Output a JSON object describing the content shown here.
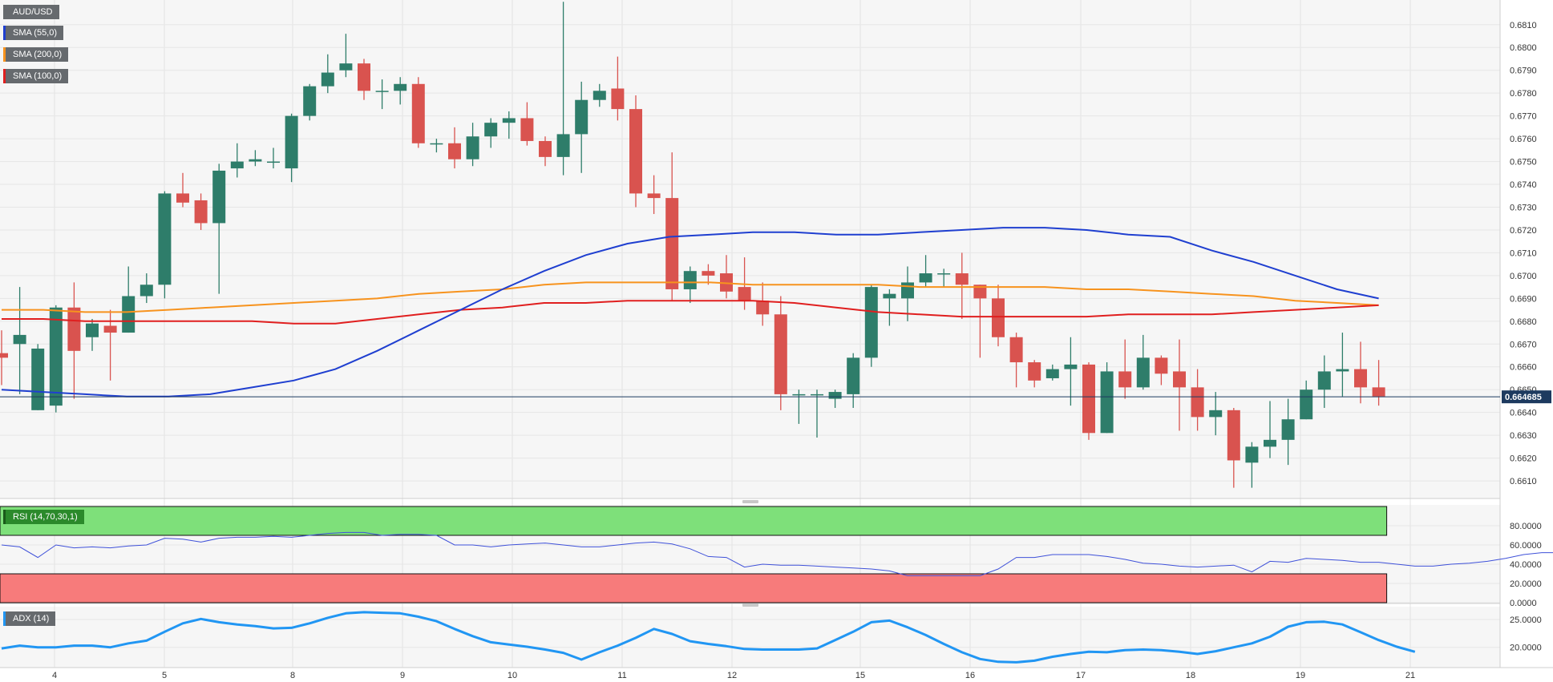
{
  "title": "AUD/USD",
  "colors": {
    "bull": "#2e7d6a",
    "bear": "#d9534f",
    "sma55": "#1f3fd0",
    "sma200": "#f7931e",
    "sma100": "#e01f1f",
    "rsi_line": "#3f51d9",
    "adx_line": "#2196f3",
    "overbought": "#7ee07a",
    "oversold": "#f77b7b",
    "price_tag": "#1d3a5f"
  },
  "legend": {
    "pair": "AUD/USD",
    "sma55": "SMA (55,0)",
    "sma200": "SMA (200,0)",
    "sma100": "SMA (100,0)",
    "rsi": "RSI (14,70,30,1)",
    "adx": "ADX (14)"
  },
  "chart_data": [
    {
      "type": "candlestick",
      "title": "AUD/USD",
      "x_tick_labels": [
        "4",
        "5",
        "8",
        "9",
        "10",
        "11",
        "12",
        "15",
        "16",
        "17",
        "18",
        "19",
        "21"
      ],
      "y_ticks": [
        "0.6610",
        "0.6620",
        "0.6630",
        "0.6640",
        "0.6650",
        "0.6660",
        "0.6670",
        "0.6680",
        "0.6690",
        "0.6700",
        "0.6710",
        "0.6720",
        "0.6730",
        "0.6740",
        "0.6750",
        "0.6760",
        "0.6770",
        "0.6780",
        "0.6790",
        "0.6800",
        "0.6810"
      ],
      "ylim": [
        0.6603,
        0.6818
      ],
      "last_price_label": "0.664685",
      "last_price": 0.664685,
      "candles": [
        [
          0.6666,
          0.6664,
          0.6676,
          0.6652
        ],
        [
          0.667,
          0.6674,
          0.6695,
          0.6648
        ],
        [
          0.6641,
          0.6668,
          0.667,
          0.6641
        ],
        [
          0.6643,
          0.6686,
          0.6687,
          0.664
        ],
        [
          0.6686,
          0.6667,
          0.6697,
          0.6646
        ],
        [
          0.6673,
          0.6679,
          0.6681,
          0.6667
        ],
        [
          0.6678,
          0.6675,
          0.6685,
          0.6654
        ],
        [
          0.6675,
          0.6691,
          0.6704,
          0.6675
        ],
        [
          0.6691,
          0.6696,
          0.6701,
          0.6688
        ],
        [
          0.6696,
          0.6736,
          0.6737,
          0.669
        ],
        [
          0.6736,
          0.6732,
          0.6745,
          0.673
        ],
        [
          0.6733,
          0.6723,
          0.6736,
          0.672
        ],
        [
          0.6723,
          0.6746,
          0.6749,
          0.6692
        ],
        [
          0.6747,
          0.675,
          0.6758,
          0.6743
        ],
        [
          0.675,
          0.6751,
          0.6755,
          0.6748
        ],
        [
          0.675,
          0.675,
          0.6756,
          0.6747
        ],
        [
          0.6747,
          0.677,
          0.6771,
          0.6741
        ],
        [
          0.677,
          0.6783,
          0.6784,
          0.6768
        ],
        [
          0.6783,
          0.6789,
          0.6797,
          0.678
        ],
        [
          0.679,
          0.6793,
          0.6806,
          0.6787
        ],
        [
          0.6793,
          0.6781,
          0.6795,
          0.6777
        ],
        [
          0.6781,
          0.6781,
          0.6786,
          0.6773
        ],
        [
          0.6781,
          0.6784,
          0.6787,
          0.6775
        ],
        [
          0.6784,
          0.6758,
          0.6787,
          0.6756
        ],
        [
          0.6758,
          0.6758,
          0.676,
          0.6754
        ],
        [
          0.6758,
          0.6751,
          0.6765,
          0.6747
        ],
        [
          0.6751,
          0.6761,
          0.6767,
          0.6748
        ],
        [
          0.6761,
          0.6767,
          0.6769,
          0.6756
        ],
        [
          0.6767,
          0.6769,
          0.6772,
          0.676
        ],
        [
          0.6769,
          0.6759,
          0.6776,
          0.6757
        ],
        [
          0.6759,
          0.6752,
          0.6761,
          0.6748
        ],
        [
          0.6752,
          0.6762,
          0.682,
          0.6744
        ],
        [
          0.6762,
          0.6777,
          0.6785,
          0.6745
        ],
        [
          0.6777,
          0.6781,
          0.6784,
          0.6774
        ],
        [
          0.6782,
          0.6773,
          0.6796,
          0.6768
        ],
        [
          0.6773,
          0.6736,
          0.6779,
          0.673
        ],
        [
          0.6736,
          0.6734,
          0.6744,
          0.6727
        ],
        [
          0.6734,
          0.6694,
          0.6754,
          0.6689
        ],
        [
          0.6694,
          0.6702,
          0.6704,
          0.6688
        ],
        [
          0.6702,
          0.67,
          0.6705,
          0.6696
        ],
        [
          0.6701,
          0.6693,
          0.6709,
          0.669
        ],
        [
          0.6695,
          0.6689,
          0.6708,
          0.6685
        ],
        [
          0.6689,
          0.6683,
          0.6697,
          0.6678
        ],
        [
          0.6683,
          0.6648,
          0.6691,
          0.6641
        ],
        [
          0.6648,
          0.6648,
          0.665,
          0.6635
        ],
        [
          0.6648,
          0.6648,
          0.665,
          0.6629
        ],
        [
          0.6646,
          0.6649,
          0.665,
          0.6642
        ],
        [
          0.6648,
          0.6664,
          0.6666,
          0.6642
        ],
        [
          0.6664,
          0.6695,
          0.6696,
          0.666
        ],
        [
          0.669,
          0.6692,
          0.6694,
          0.6678
        ],
        [
          0.669,
          0.6697,
          0.6704,
          0.668
        ],
        [
          0.6697,
          0.6701,
          0.6709,
          0.6695
        ],
        [
          0.6701,
          0.6701,
          0.6703,
          0.6695
        ],
        [
          0.6701,
          0.6696,
          0.671,
          0.6681
        ],
        [
          0.6696,
          0.669,
          0.6696,
          0.6664
        ],
        [
          0.669,
          0.6673,
          0.6696,
          0.6669
        ],
        [
          0.6673,
          0.6662,
          0.6675,
          0.6651
        ],
        [
          0.6662,
          0.6654,
          0.6663,
          0.6651
        ],
        [
          0.6655,
          0.6659,
          0.6661,
          0.6654
        ],
        [
          0.6659,
          0.6661,
          0.6673,
          0.6643
        ],
        [
          0.6661,
          0.6631,
          0.6662,
          0.6628
        ],
        [
          0.6631,
          0.6658,
          0.6662,
          0.6631
        ],
        [
          0.6658,
          0.6651,
          0.6672,
          0.6646
        ],
        [
          0.6651,
          0.6664,
          0.6674,
          0.665
        ],
        [
          0.6664,
          0.6657,
          0.6665,
          0.6652
        ],
        [
          0.6658,
          0.6651,
          0.6672,
          0.6632
        ],
        [
          0.6651,
          0.6638,
          0.6659,
          0.6632
        ],
        [
          0.6638,
          0.6641,
          0.6649,
          0.663
        ],
        [
          0.6641,
          0.6619,
          0.6642,
          0.6607
        ],
        [
          0.6618,
          0.6625,
          0.6627,
          0.6607
        ],
        [
          0.6625,
          0.6628,
          0.6645,
          0.662
        ],
        [
          0.6628,
          0.6637,
          0.6646,
          0.6617
        ],
        [
          0.6637,
          0.665,
          0.6654,
          0.6637
        ],
        [
          0.665,
          0.6658,
          0.6665,
          0.6642
        ],
        [
          0.6658,
          0.6659,
          0.6675,
          0.6647
        ],
        [
          0.6659,
          0.6651,
          0.6671,
          0.6644
        ],
        [
          0.6651,
          0.6647,
          0.6663,
          0.6643
        ]
      ],
      "sma55": [
        0.665,
        0.6649,
        0.6648,
        0.6647,
        0.6647,
        0.6648,
        0.6651,
        0.6654,
        0.6659,
        0.6667,
        0.6676,
        0.6685,
        0.6694,
        0.6702,
        0.6709,
        0.6714,
        0.6717,
        0.6718,
        0.6719,
        0.6719,
        0.6718,
        0.6718,
        0.6719,
        0.672,
        0.6721,
        0.6721,
        0.672,
        0.6718,
        0.6717,
        0.6711,
        0.6706,
        0.67,
        0.6694,
        0.669
      ],
      "sma200": [
        0.6685,
        0.6685,
        0.6684,
        0.6684,
        0.6685,
        0.6686,
        0.6687,
        0.6688,
        0.6689,
        0.669,
        0.6692,
        0.6693,
        0.6694,
        0.6696,
        0.6697,
        0.6697,
        0.6697,
        0.6697,
        0.6696,
        0.6696,
        0.6696,
        0.6696,
        0.6695,
        0.6695,
        0.6695,
        0.6695,
        0.6694,
        0.6694,
        0.6693,
        0.6692,
        0.6691,
        0.6689,
        0.6688,
        0.6687
      ],
      "sma100": [
        0.6681,
        0.6681,
        0.668,
        0.668,
        0.668,
        0.668,
        0.668,
        0.6679,
        0.6679,
        0.6681,
        0.6683,
        0.6685,
        0.6686,
        0.6688,
        0.6688,
        0.6689,
        0.6689,
        0.6689,
        0.6689,
        0.6688,
        0.6686,
        0.6684,
        0.6683,
        0.6682,
        0.6682,
        0.6682,
        0.6682,
        0.6683,
        0.6683,
        0.6683,
        0.6684,
        0.6685,
        0.6686,
        0.6687
      ]
    },
    {
      "type": "line",
      "title": "RSI (14,70,30,1)",
      "y_ticks": [
        "0.0000",
        "20.0000",
        "40.0000",
        "60.0000",
        "80.0000"
      ],
      "ylim": [
        0,
        100
      ],
      "overbought": 70,
      "oversold": 30,
      "values": [
        60,
        58,
        47,
        60,
        57,
        58,
        57,
        59,
        60,
        67,
        66,
        63,
        67,
        68,
        68,
        69,
        68,
        70,
        72,
        73,
        73,
        70,
        71,
        71,
        70,
        60,
        60,
        58,
        60,
        61,
        62,
        60,
        58,
        58,
        60,
        62,
        63,
        61,
        56,
        48,
        47,
        37,
        40,
        39,
        39,
        38,
        37,
        36,
        35,
        33,
        28,
        28,
        28,
        28,
        28,
        35,
        47,
        47,
        50,
        50,
        50,
        48,
        45,
        41,
        40,
        38,
        37,
        38,
        39,
        32,
        43,
        42,
        46,
        45,
        44,
        42,
        42,
        40,
        38,
        38,
        40,
        41,
        43,
        46,
        50,
        52,
        52,
        49,
        47
      ]
    },
    {
      "type": "line",
      "title": "ADX (14)",
      "y_ticks": [
        "20.0000",
        "25.0000"
      ],
      "ylim": [
        16.5,
        27.3
      ],
      "values": [
        19.8,
        20.3,
        20.0,
        20.0,
        20.3,
        20.3,
        20.0,
        20.7,
        21.2,
        22.8,
        24.3,
        25.1,
        24.5,
        24.1,
        23.8,
        23.4,
        23.5,
        24.3,
        25.3,
        26.1,
        26.3,
        26.2,
        26.1,
        25.5,
        24.7,
        23.3,
        22.0,
        20.9,
        20.5,
        20.1,
        19.6,
        19.0,
        17.8,
        19.1,
        20.3,
        21.7,
        23.3,
        22.4,
        21.1,
        20.6,
        20.2,
        19.7,
        19.6,
        19.6,
        19.6,
        19.8,
        21.3,
        22.8,
        24.5,
        24.8,
        23.6,
        22.2,
        20.6,
        19.1,
        17.9,
        17.4,
        17.3,
        17.6,
        18.3,
        18.8,
        19.2,
        19.1,
        19.5,
        19.6,
        19.5,
        19.2,
        18.8,
        19.3,
        20.0,
        20.7,
        21.9,
        23.7,
        24.5,
        24.6,
        24.1,
        22.7,
        21.3,
        20.1,
        19.2
      ]
    }
  ]
}
